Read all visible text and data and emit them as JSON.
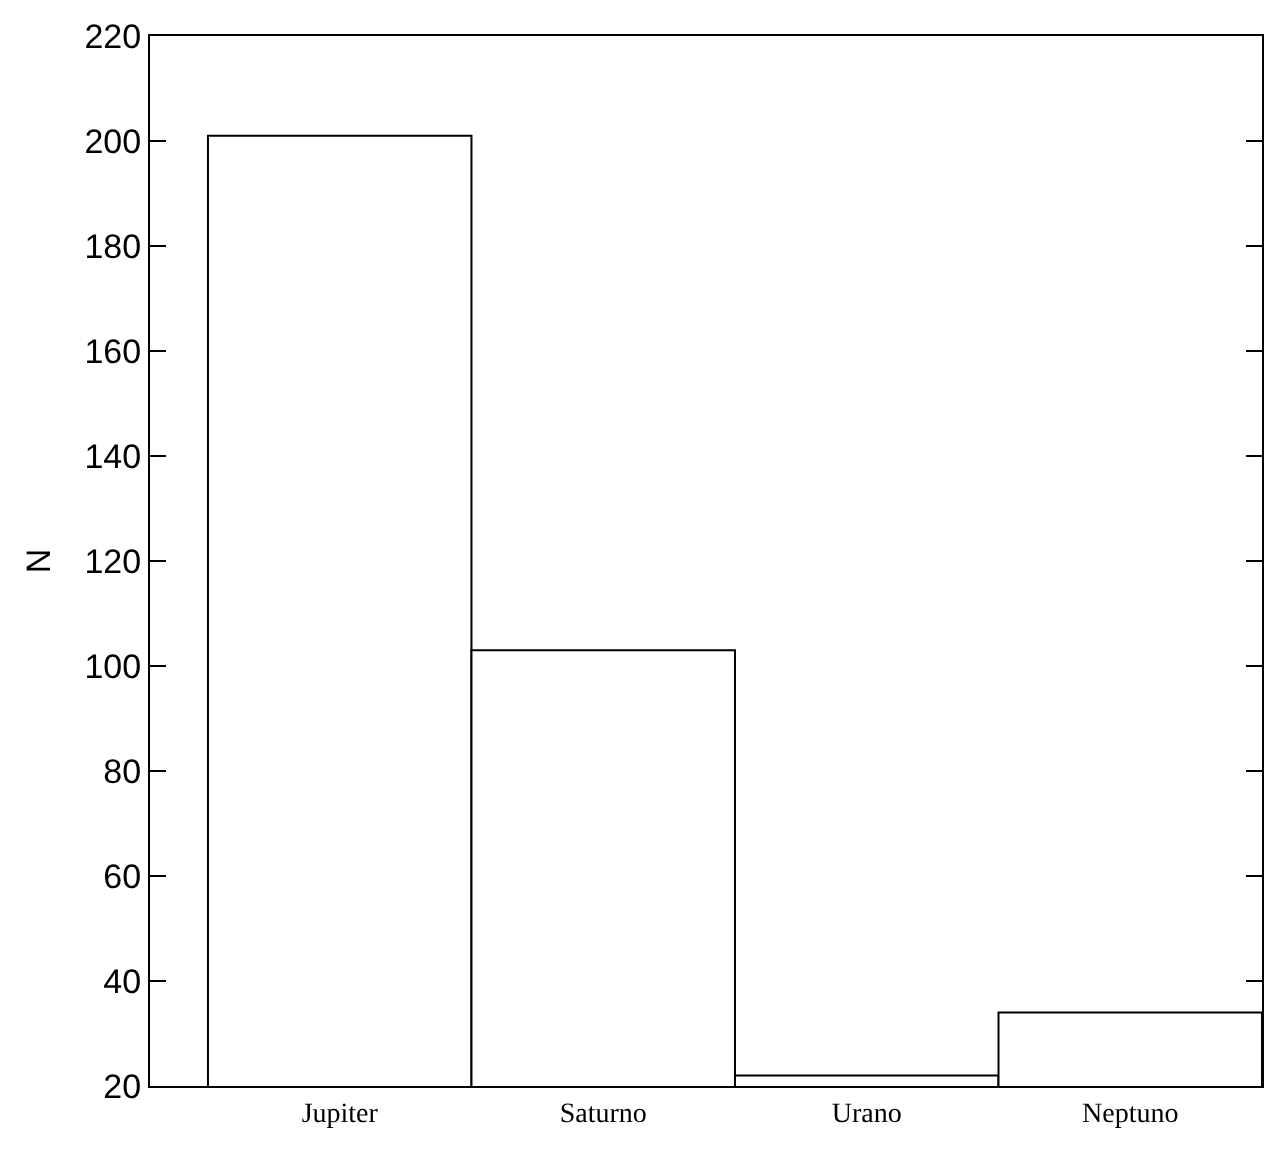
{
  "chart_data": {
    "type": "bar",
    "ylabel": "N",
    "categories": [
      "Jupiter",
      "Saturno",
      "Urano",
      "Neptuno"
    ],
    "values": [
      201,
      103,
      22,
      34
    ],
    "color": "#ffffff",
    "ylim": [
      20,
      220
    ],
    "yticks": [
      20,
      40,
      60,
      80,
      100,
      120,
      140,
      160,
      180,
      200,
      220
    ],
    "grid": false,
    "legend": false
  }
}
